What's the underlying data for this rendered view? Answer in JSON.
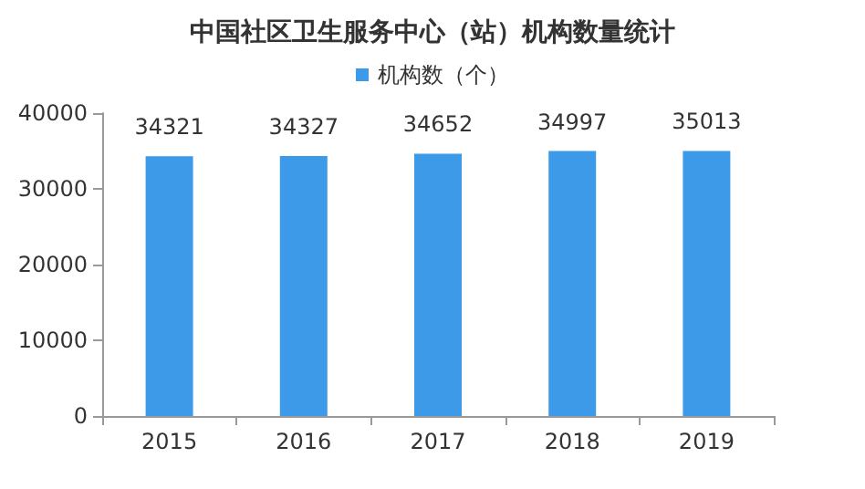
{
  "chart_data": {
    "type": "bar",
    "title": "中国社区卫生服务中心（站）机构数量统计",
    "categories": [
      "2015",
      "2016",
      "2017",
      "2018",
      "2019"
    ],
    "series": [
      {
        "name": "机构数（个）",
        "color": "#3d9ae8",
        "values": [
          34321,
          34327,
          34652,
          34997,
          35013
        ]
      }
    ],
    "ylim": [
      0,
      40000
    ],
    "yticks": [
      0,
      10000,
      20000,
      30000,
      40000
    ],
    "grid": false,
    "legend": "top",
    "data_labels": true
  }
}
